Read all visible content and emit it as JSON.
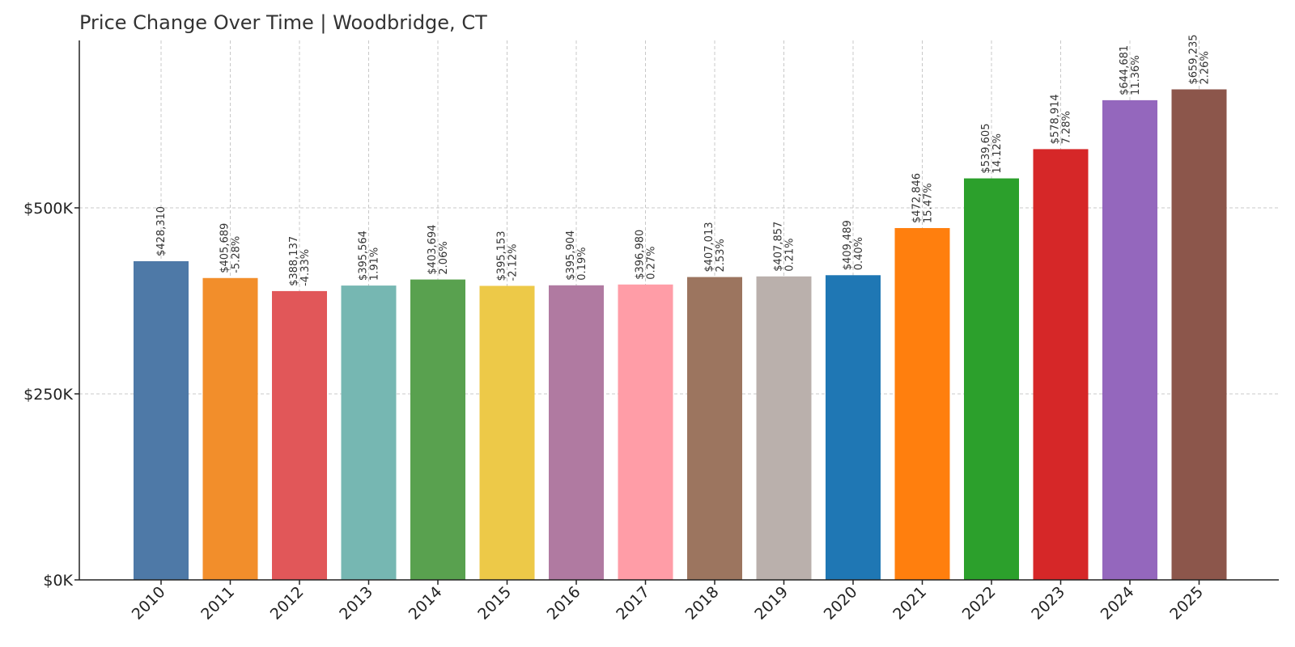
{
  "chart_data": {
    "type": "bar",
    "title": "Price Change Over Time | Woodbridge, CT",
    "xlabel": "",
    "ylabel": "",
    "ylim": [
      0,
      725000
    ],
    "y_ticks": [
      {
        "value": 0,
        "label": "$0K"
      },
      {
        "value": 250000,
        "label": "$250K"
      },
      {
        "value": 500000,
        "label": "$500K"
      }
    ],
    "grid": true,
    "categories": [
      "2010",
      "2011",
      "2012",
      "2013",
      "2014",
      "2015",
      "2016",
      "2017",
      "2018",
      "2019",
      "2020",
      "2021",
      "2022",
      "2023",
      "2024",
      "2025"
    ],
    "values": [
      428310,
      405689,
      388137,
      395564,
      403694,
      395153,
      395904,
      396980,
      407013,
      407857,
      409489,
      472846,
      539605,
      578914,
      644681,
      659235
    ],
    "value_labels": [
      "$428,310",
      "$405,689",
      "$388,137",
      "$395,564",
      "$403,694",
      "$395,153",
      "$395,904",
      "$396,980",
      "$407,013",
      "$407,857",
      "$409,489",
      "$472,846",
      "$539,605",
      "$578,914",
      "$644,681",
      "$659,235"
    ],
    "change_labels": [
      "",
      "-5.28%",
      "-4.33%",
      "1.91%",
      "2.06%",
      "-2.12%",
      "0.19%",
      "0.27%",
      "2.53%",
      "0.21%",
      "0.40%",
      "15.47%",
      "14.12%",
      "7.28%",
      "11.36%",
      "2.26%"
    ],
    "colors": [
      "#4e79a7",
      "#f28e2b",
      "#e15759",
      "#76b7b2",
      "#59a14f",
      "#edc948",
      "#b07aa1",
      "#ff9da7",
      "#9c755f",
      "#bab0ac",
      "#1f77b4",
      "#ff7f0e",
      "#2ca02c",
      "#d62728",
      "#9467bd",
      "#8c564b"
    ]
  }
}
